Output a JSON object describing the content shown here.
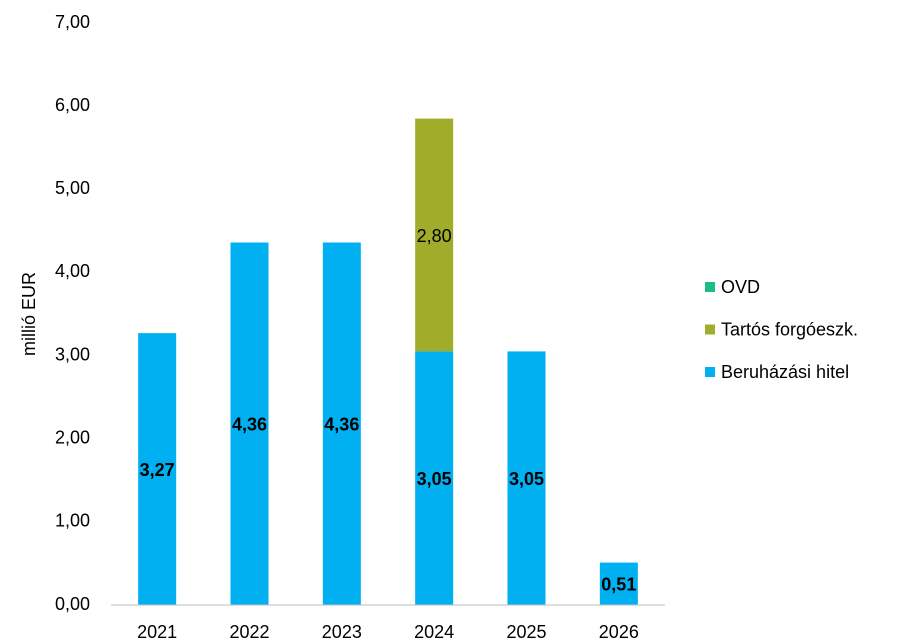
{
  "chart_data": {
    "type": "stacked_bar",
    "y_label": "millió EUR",
    "categories": [
      "2021",
      "2022",
      "2023",
      "2024",
      "2025",
      "2026"
    ],
    "series": [
      {
        "name": "Beruházási hitel",
        "color": "#00b0f0",
        "values": [
          3.27,
          4.36,
          4.36,
          3.05,
          3.05,
          0.51
        ],
        "value_labels": [
          "3,27",
          "4,36",
          "4,36",
          "3,05",
          "3,05",
          "0,51"
        ]
      },
      {
        "name": "Tartós forgóeszk.",
        "color": "#a0ac2a",
        "values": [
          null,
          null,
          null,
          2.8,
          null,
          null
        ],
        "value_labels": [
          null,
          null,
          null,
          "2,80",
          null,
          null
        ]
      },
      {
        "name": "OVD",
        "color": "#1abc8c",
        "values": [
          null,
          null,
          null,
          null,
          null,
          null
        ]
      }
    ],
    "ylim": [
      0,
      7
    ],
    "yticks": [
      {
        "value": 0,
        "label": "0,00"
      },
      {
        "value": 1,
        "label": "1,00"
      },
      {
        "value": 2,
        "label": "2,00"
      },
      {
        "value": 3,
        "label": "3,00"
      },
      {
        "value": 4,
        "label": "4,00"
      },
      {
        "value": 5,
        "label": "5,00"
      },
      {
        "value": 6,
        "label": "6,00"
      },
      {
        "value": 7,
        "label": "7,00"
      }
    ],
    "legend": "right"
  }
}
